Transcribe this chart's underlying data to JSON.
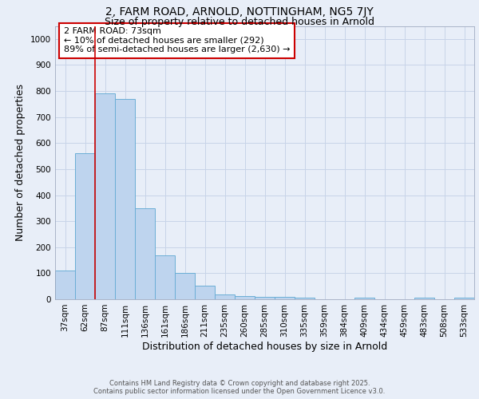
{
  "title_line1": "2, FARM ROAD, ARNOLD, NOTTINGHAM, NG5 7JY",
  "title_line2": "Size of property relative to detached houses in Arnold",
  "xlabel": "Distribution of detached houses by size in Arnold",
  "ylabel": "Number of detached properties",
  "categories": [
    "37sqm",
    "62sqm",
    "87sqm",
    "111sqm",
    "136sqm",
    "161sqm",
    "186sqm",
    "211sqm",
    "235sqm",
    "260sqm",
    "285sqm",
    "310sqm",
    "335sqm",
    "359sqm",
    "384sqm",
    "409sqm",
    "434sqm",
    "459sqm",
    "483sqm",
    "508sqm",
    "533sqm"
  ],
  "values": [
    110,
    560,
    790,
    770,
    350,
    170,
    100,
    53,
    18,
    13,
    8,
    8,
    5,
    0,
    0,
    5,
    0,
    0,
    5,
    0,
    5
  ],
  "bar_color": "#bed4ee",
  "bar_edge_color": "#6baed6",
  "grid_color": "#c8d4e8",
  "background_color": "#e8eef8",
  "ref_line_x": 1.5,
  "ref_line_color": "#cc0000",
  "annotation_box_text": "2 FARM ROAD: 73sqm\n← 10% of detached houses are smaller (292)\n89% of semi-detached houses are larger (2,630) →",
  "annotation_box_color": "#cc0000",
  "annotation_box_bg": "#ffffff",
  "ylim": [
    0,
    1050
  ],
  "yticks": [
    0,
    100,
    200,
    300,
    400,
    500,
    600,
    700,
    800,
    900,
    1000
  ],
  "footer_line1": "Contains HM Land Registry data © Crown copyright and database right 2025.",
  "footer_line2": "Contains public sector information licensed under the Open Government Licence v3.0.",
  "title_fontsize": 10,
  "subtitle_fontsize": 9,
  "tick_fontsize": 7.5,
  "label_fontsize": 9,
  "annotation_fontsize": 8,
  "footer_fontsize": 6
}
